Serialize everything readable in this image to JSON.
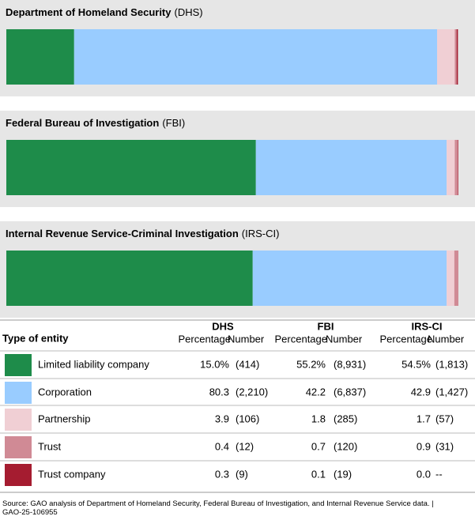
{
  "chart_data": [
    {
      "type": "bar",
      "title": "Department of Homeland Security",
      "title_abbr": "(DHS)",
      "xlim": [
        0,
        100
      ],
      "series": [
        {
          "name": "Limited liability company",
          "color": "#1e8c4a",
          "values": [
            15.0
          ],
          "value_labels": [
            "15.0%"
          ]
        },
        {
          "name": "Corporation",
          "color": "#99ccff",
          "values": [
            80.3
          ],
          "value_labels": [
            "80.3"
          ]
        },
        {
          "name": "Partnership",
          "color": "#f0cfd4",
          "values": [
            3.9
          ],
          "value_labels": [
            "3.9"
          ]
        },
        {
          "name": "Trust",
          "color": "#d08a95",
          "values": [
            0.4
          ],
          "value_labels": [
            "0.4"
          ]
        },
        {
          "name": "Trust company",
          "color": "#a51c30",
          "values": [
            0.3
          ],
          "value_labels": [
            "0.3"
          ]
        }
      ]
    },
    {
      "type": "bar",
      "title": "Federal Bureau of Investigation",
      "title_abbr": "(FBI)",
      "xlim": [
        0,
        100
      ],
      "series": [
        {
          "name": "Limited liability company",
          "color": "#1e8c4a",
          "values": [
            55.2
          ],
          "value_labels": [
            "55.2%"
          ]
        },
        {
          "name": "Corporation",
          "color": "#99ccff",
          "values": [
            42.2
          ],
          "value_labels": [
            "42.2"
          ]
        },
        {
          "name": "Partnership",
          "color": "#f0cfd4",
          "values": [
            1.8
          ],
          "value_labels": [
            "1.8"
          ]
        },
        {
          "name": "Trust",
          "color": "#d08a95",
          "values": [
            0.7
          ],
          "value_labels": [
            "0.7"
          ]
        },
        {
          "name": "Trust company",
          "color": "#a51c30",
          "values": [
            0.1
          ],
          "value_labels": [
            "0.1"
          ]
        }
      ]
    },
    {
      "type": "bar",
      "title": "Internal Revenue Service-Criminal Investigation",
      "title_abbr": "(IRS-CI)",
      "xlim": [
        0,
        100
      ],
      "series": [
        {
          "name": "Limited liability company",
          "color": "#1e8c4a",
          "values": [
            54.5
          ],
          "value_labels": [
            "54.5%"
          ]
        },
        {
          "name": "Corporation",
          "color": "#99ccff",
          "values": [
            42.9
          ],
          "value_labels": [
            "42.9"
          ]
        },
        {
          "name": "Partnership",
          "color": "#f0cfd4",
          "values": [
            1.7
          ],
          "value_labels": [
            "1.7"
          ]
        },
        {
          "name": "Trust",
          "color": "#d08a95",
          "values": [
            0.9
          ],
          "value_labels": [
            "0.9"
          ]
        },
        {
          "name": "Trust company",
          "color": "#a51c30",
          "values": [
            0.0
          ],
          "value_labels": [
            "0.0"
          ]
        }
      ]
    }
  ],
  "table": {
    "header": "Type of entity",
    "columns": [
      "DHS",
      "FBI",
      "IRS-CI"
    ],
    "subheaders": [
      "Percentage",
      "Number"
    ],
    "counts": [
      [
        "(414)",
        "(8,931)",
        "(1,813)"
      ],
      [
        "(2,210)",
        "(6,837)",
        "(1,427)"
      ],
      [
        "(106)",
        "(285)",
        "(57)"
      ],
      [
        "(12)",
        "(120)",
        "(31)"
      ],
      [
        "(9)",
        "(19)",
        "--"
      ]
    ]
  },
  "source": "Source: GAO analysis of Department of Homeland Security, Federal Bureau of Investigation, and Internal Revenue Service data.  |  GAO-25-106955"
}
